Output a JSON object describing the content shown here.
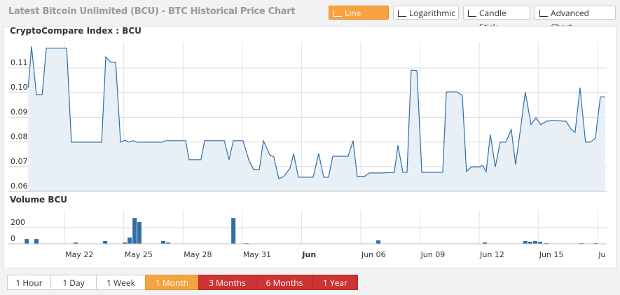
{
  "header": {
    "title": "Latest Bitcoin Unlimited (BCU) - BTC Historical Price Chart",
    "buttons": [
      "Line Chart",
      "Logarithmic",
      "Candle Stick",
      "Advanced Chart"
    ]
  },
  "range_buttons": [
    "1 Hour",
    "1 Day",
    "1 Week",
    "1 Month",
    "3 Months",
    "6 Months",
    "1 Year"
  ],
  "chart_data": [
    {
      "type": "area",
      "title": "CryptoCompare Index : BCU",
      "color": "#2f6fa6",
      "fill": "#e8eff7",
      "grid": true,
      "x": [
        20.16,
        20.33,
        20.58,
        20.87,
        21.08,
        22.11,
        22.35,
        23.88,
        24.09,
        24.34,
        24.59,
        24.84,
        25.05,
        25.23,
        25.48,
        25.69,
        26.96,
        27.11,
        28.13,
        28.31,
        28.91,
        29.09,
        30.09,
        30.33,
        30.55,
        31.04,
        31.33,
        31.57,
        31.86,
        32.07,
        32.39,
        32.6,
        32.85,
        33.1,
        33.42,
        33.6,
        33.84,
        34.59,
        34.87,
        35.12,
        35.37,
        35.58,
        36.36,
        36.61,
        36.82,
        37.18,
        37.43,
        38.06,
        38.7,
        38.88,
        39.13,
        39.34,
        39.55,
        39.84,
        40.09,
        41.15,
        41.33,
        41.86,
        42.14,
        42.35,
        42.6,
        43.03,
        43.17,
        43.35,
        43.56,
        43.81,
        44.06,
        44.34,
        44.62,
        44.84,
        45.12,
        45.33,
        45.62,
        45.87,
        46.11,
        46.4,
        46.68,
        47.39,
        47.64,
        47.85,
        48.1,
        48.38,
        48.63,
        48.88,
        49.13,
        49.38
      ],
      "values": [
        0.102,
        0.1187,
        0.0992,
        0.0992,
        0.118,
        0.118,
        0.0799,
        0.0799,
        0.1145,
        0.1123,
        0.1123,
        0.0799,
        0.0807,
        0.0799,
        0.0805,
        0.0799,
        0.0799,
        0.0805,
        0.0805,
        0.0728,
        0.0728,
        0.0805,
        0.0805,
        0.0728,
        0.0805,
        0.0805,
        0.0728,
        0.0688,
        0.0688,
        0.0805,
        0.0748,
        0.0739,
        0.0651,
        0.066,
        0.0694,
        0.0753,
        0.0657,
        0.0657,
        0.0753,
        0.0657,
        0.0657,
        0.0742,
        0.0742,
        0.0805,
        0.066,
        0.066,
        0.0674,
        0.0674,
        0.0677,
        0.0787,
        0.0677,
        0.0677,
        0.1091,
        0.1089,
        0.0677,
        0.0677,
        0.1003,
        0.1003,
        0.0989,
        0.068,
        0.0699,
        0.0699,
        0.0705,
        0.068,
        0.083,
        0.0699,
        0.0799,
        0.0799,
        0.085,
        0.0708,
        0.0873,
        0.1003,
        0.087,
        0.0898,
        0.087,
        0.0884,
        0.0887,
        0.0884,
        0.0853,
        0.0839,
        0.102,
        0.0799,
        0.0799,
        0.0816,
        0.0983,
        0.0983
      ],
      "xlim": [
        19.16,
        49.45
      ],
      "xticks": [
        22,
        25,
        28,
        31,
        34,
        37,
        40,
        43,
        46,
        49
      ],
      "ylim": [
        0.06,
        0.1205
      ],
      "yticks": [
        0.06,
        0.07,
        0.08,
        0.09,
        {
          "value": 0.1,
          "label": "0.10"
        },
        0.11
      ]
    },
    {
      "type": "bar",
      "title": "Volume BCU",
      "color": "#2f6fa6",
      "grid": true,
      "x": [
        20.09,
        20.58,
        22.57,
        24.06,
        25.05,
        25.3,
        25.55,
        25.79,
        27.0,
        27.25,
        30.55,
        31.22,
        37.89,
        43.28,
        45.33,
        45.58,
        45.83,
        46.08,
        46.4,
        48.17,
        48.88
      ],
      "values": [
        60,
        60,
        17,
        35,
        17,
        78,
        320,
        270,
        35,
        17,
        320,
        9,
        43,
        17,
        35,
        26,
        35,
        26,
        9,
        9,
        9
      ],
      "xlim": [
        19.16,
        49.45
      ],
      "xticks": [
        {
          "value": 22,
          "label": "May 22"
        },
        {
          "value": 25,
          "label": "May 25"
        },
        {
          "value": 28,
          "label": "May 28"
        },
        {
          "value": 31,
          "label": "May 31"
        },
        {
          "value": 34,
          "label": "Jun"
        },
        {
          "value": 37,
          "label": "Jun 06"
        },
        {
          "value": 40,
          "label": "Jun 09"
        },
        {
          "value": 43,
          "label": "Jun 12"
        },
        {
          "value": 46,
          "label": "Jun 15"
        },
        {
          "value": 49,
          "label": "Ju"
        }
      ],
      "ylim": [
        0,
        417
      ],
      "yticks": [
        0,
        200
      ]
    }
  ]
}
